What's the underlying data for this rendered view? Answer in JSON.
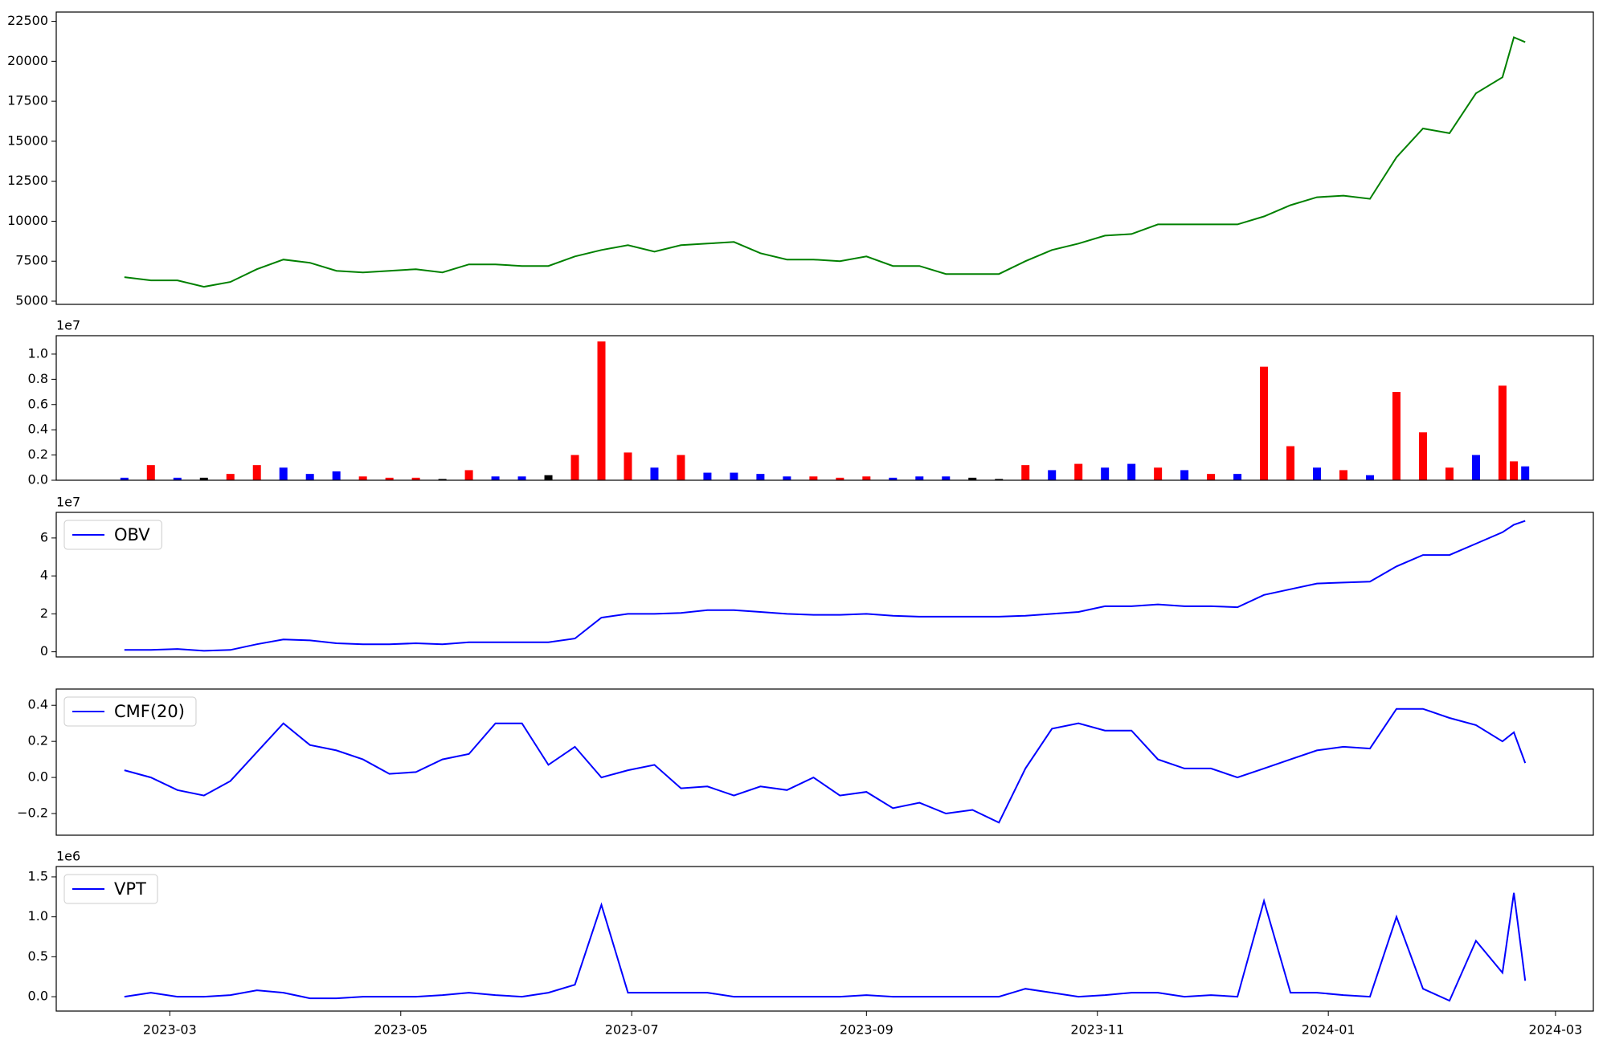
{
  "chart_data": [
    {
      "type": "line",
      "xlim": [
        -30,
        376
      ],
      "x": [
        -12,
        -5,
        2,
        9,
        16,
        23,
        30,
        37,
        44,
        51,
        58,
        65,
        72,
        79,
        86,
        93,
        100,
        107,
        114,
        121,
        128,
        135,
        142,
        149,
        156,
        163,
        170,
        177,
        184,
        191,
        198,
        205,
        212,
        219,
        226,
        233,
        240,
        247,
        254,
        261,
        268,
        275,
        282,
        289,
        296,
        303,
        310,
        317,
        324,
        331,
        338,
        345,
        352,
        355,
        358
      ],
      "ylim": [
        4800,
        23080
      ],
      "yticks": [
        5000,
        7500,
        10000,
        12500,
        15000,
        17500,
        20000,
        22500
      ],
      "series": [
        {
          "color": "#008000",
          "values": [
            6500,
            6300,
            6300,
            5900,
            6200,
            7000,
            7600,
            7400,
            6900,
            6800,
            6900,
            7000,
            6800,
            7300,
            7300,
            7200,
            7200,
            7800,
            8200,
            8500,
            8100,
            8500,
            8600,
            8700,
            8000,
            7600,
            7600,
            7500,
            7800,
            7200,
            7200,
            6700,
            6700,
            6700,
            7500,
            8200,
            8600,
            9100,
            9200,
            9800,
            9800,
            9800,
            9800,
            10300,
            11000,
            11500,
            11600,
            11400,
            14000,
            15800,
            15500,
            18000,
            19000,
            21500,
            21200
          ]
        }
      ]
    },
    {
      "type": "bar",
      "xlim": [
        -30,
        376
      ],
      "offset_label": "1e7",
      "x": [
        -12,
        -5,
        2,
        9,
        16,
        23,
        30,
        37,
        44,
        51,
        58,
        65,
        72,
        79,
        86,
        93,
        100,
        107,
        114,
        121,
        128,
        135,
        142,
        149,
        156,
        163,
        170,
        177,
        184,
        191,
        198,
        205,
        212,
        219,
        226,
        233,
        240,
        247,
        254,
        261,
        268,
        275,
        282,
        289,
        296,
        303,
        310,
        317,
        324,
        331,
        338,
        345,
        352,
        355,
        358
      ],
      "ylim": [
        0,
        11460000
      ],
      "yticks": [
        {
          "value": 0,
          "label": "0.0"
        },
        {
          "value": 2000000,
          "label": "0.2"
        },
        {
          "value": 4000000,
          "label": "0.4"
        },
        {
          "value": 6000000,
          "label": "0.6"
        },
        {
          "value": 8000000,
          "label": "0.8"
        },
        {
          "value": 10000000,
          "label": "1.0"
        }
      ],
      "series": [
        {
          "values": [
            200000,
            1200000,
            200000,
            200000,
            500000,
            1200000,
            1000000,
            500000,
            700000,
            300000,
            200000,
            200000,
            100000,
            800000,
            300000,
            300000,
            400000,
            2000000,
            11000000,
            2200000,
            1000000,
            2000000,
            600000,
            600000,
            500000,
            300000,
            300000,
            200000,
            300000,
            200000,
            300000,
            300000,
            200000,
            100000,
            1200000,
            800000,
            1300000,
            1000000,
            1300000,
            1000000,
            800000,
            500000,
            500000,
            9000000,
            2700000,
            1000000,
            800000,
            400000,
            7000000,
            3800000,
            1000000,
            2000000,
            7500000,
            1500000,
            1100000
          ],
          "colors": [
            "#0000ff",
            "#ff0000",
            "#0000ff",
            "#000000",
            "#ff0000",
            "#ff0000",
            "#0000ff",
            "#0000ff",
            "#0000ff",
            "#ff0000",
            "#ff0000",
            "#ff0000",
            "#000000",
            "#ff0000",
            "#0000ff",
            "#0000ff",
            "#000000",
            "#ff0000",
            "#ff0000",
            "#ff0000",
            "#0000ff",
            "#ff0000",
            "#0000ff",
            "#0000ff",
            "#0000ff",
            "#0000ff",
            "#ff0000",
            "#ff0000",
            "#ff0000",
            "#0000ff",
            "#0000ff",
            "#0000ff",
            "#000000",
            "#000000",
            "#ff0000",
            "#0000ff",
            "#ff0000",
            "#0000ff",
            "#0000ff",
            "#ff0000",
            "#0000ff",
            "#ff0000",
            "#0000ff",
            "#ff0000",
            "#ff0000",
            "#0000ff",
            "#ff0000",
            "#0000ff",
            "#ff0000",
            "#ff0000",
            "#ff0000",
            "#0000ff",
            "#ff0000",
            "#ff0000",
            "#0000ff"
          ]
        }
      ]
    },
    {
      "type": "line",
      "xlim": [
        -30,
        376
      ],
      "offset_label": "1e7",
      "legend": "upper left",
      "x": [
        -12,
        -5,
        2,
        9,
        16,
        23,
        30,
        37,
        44,
        51,
        58,
        65,
        72,
        79,
        86,
        93,
        100,
        107,
        114,
        121,
        128,
        135,
        142,
        149,
        156,
        163,
        170,
        177,
        184,
        191,
        198,
        205,
        212,
        219,
        226,
        233,
        240,
        247,
        254,
        261,
        268,
        275,
        282,
        289,
        296,
        303,
        310,
        317,
        324,
        331,
        338,
        345,
        352,
        355,
        358
      ],
      "ylim": [
        -2700000,
        73500000
      ],
      "yticks": [
        {
          "value": 0,
          "label": "0"
        },
        {
          "value": 20000000,
          "label": "2"
        },
        {
          "value": 40000000,
          "label": "4"
        },
        {
          "value": 60000000,
          "label": "6"
        }
      ],
      "series": [
        {
          "name": "OBV",
          "color": "#0000ff",
          "values": [
            1000000,
            1000000,
            1500000,
            500000,
            1000000,
            4000000,
            6500000,
            6000000,
            4500000,
            4000000,
            4000000,
            4500000,
            4000000,
            5000000,
            5000000,
            5000000,
            5000000,
            7000000,
            18000000,
            20000000,
            20000000,
            20500000,
            22000000,
            22000000,
            21000000,
            20000000,
            19500000,
            19500000,
            20000000,
            19000000,
            18500000,
            18500000,
            18500000,
            18500000,
            19000000,
            20000000,
            21000000,
            24000000,
            24000000,
            25000000,
            24000000,
            24000000,
            23500000,
            30000000,
            33000000,
            36000000,
            36500000,
            37000000,
            45000000,
            51000000,
            51000000,
            57000000,
            63000000,
            67000000,
            69000000
          ]
        }
      ]
    },
    {
      "type": "line",
      "xlim": [
        -30,
        376
      ],
      "legend": "upper left",
      "x": [
        -12,
        -5,
        2,
        9,
        16,
        23,
        30,
        37,
        44,
        51,
        58,
        65,
        72,
        79,
        86,
        93,
        100,
        107,
        114,
        121,
        128,
        135,
        142,
        149,
        156,
        163,
        170,
        177,
        184,
        191,
        198,
        205,
        212,
        219,
        226,
        233,
        240,
        247,
        254,
        261,
        268,
        275,
        282,
        289,
        296,
        303,
        310,
        317,
        324,
        331,
        338,
        345,
        352,
        355,
        358
      ],
      "ylim": [
        -0.32,
        0.49
      ],
      "yticks": [
        {
          "value": -0.2,
          "label": "−0.2"
        },
        {
          "value": 0,
          "label": "0.0"
        },
        {
          "value": 0.2,
          "label": "0.2"
        },
        {
          "value": 0.4,
          "label": "0.4"
        }
      ],
      "series": [
        {
          "name": "CMF(20)",
          "color": "#0000ff",
          "values": [
            0.04,
            0.0,
            -0.07,
            -0.1,
            -0.02,
            0.14,
            0.3,
            0.18,
            0.15,
            0.1,
            0.02,
            0.03,
            0.1,
            0.13,
            0.3,
            0.3,
            0.07,
            0.17,
            0.0,
            0.04,
            0.07,
            -0.06,
            -0.05,
            -0.1,
            -0.05,
            -0.07,
            0.0,
            -0.1,
            -0.08,
            -0.17,
            -0.14,
            -0.2,
            -0.18,
            -0.25,
            0.05,
            0.27,
            0.3,
            0.26,
            0.26,
            0.1,
            0.05,
            0.05,
            0.0,
            0.05,
            0.1,
            0.15,
            0.17,
            0.16,
            0.38,
            0.38,
            0.33,
            0.29,
            0.2,
            0.25,
            0.08
          ]
        }
      ]
    },
    {
      "type": "line",
      "xlim": [
        -30,
        376
      ],
      "offset_label": "1e6",
      "legend": "upper left",
      "x": [
        -12,
        -5,
        2,
        9,
        16,
        23,
        30,
        37,
        44,
        51,
        58,
        65,
        72,
        79,
        86,
        93,
        100,
        107,
        114,
        121,
        128,
        135,
        142,
        149,
        156,
        163,
        170,
        177,
        184,
        191,
        198,
        205,
        212,
        219,
        226,
        233,
        240,
        247,
        254,
        261,
        268,
        275,
        282,
        289,
        296,
        303,
        310,
        317,
        324,
        331,
        338,
        345,
        352,
        355,
        358
      ],
      "ylim": [
        -180000,
        1630000
      ],
      "yticks": [
        {
          "value": 0,
          "label": "0.0"
        },
        {
          "value": 500000,
          "label": "0.5"
        },
        {
          "value": 1000000,
          "label": "1.0"
        },
        {
          "value": 1500000,
          "label": "1.5"
        }
      ],
      "xticks": [
        {
          "value": 0,
          "label": "2023-03"
        },
        {
          "value": 61,
          "label": "2023-05"
        },
        {
          "value": 122,
          "label": "2023-07"
        },
        {
          "value": 184,
          "label": "2023-09"
        },
        {
          "value": 245,
          "label": "2023-11"
        },
        {
          "value": 306,
          "label": "2024-01"
        },
        {
          "value": 366,
          "label": "2024-03"
        }
      ],
      "series": [
        {
          "name": "VPT",
          "color": "#0000ff",
          "values": [
            0,
            50000,
            0,
            0,
            20000,
            80000,
            50000,
            -20000,
            -20000,
            0,
            0,
            0,
            20000,
            50000,
            20000,
            0,
            50000,
            150000,
            1150000,
            50000,
            50000,
            50000,
            50000,
            0,
            0,
            0,
            0,
            0,
            20000,
            0,
            0,
            0,
            0,
            0,
            100000,
            50000,
            0,
            20000,
            50000,
            50000,
            0,
            20000,
            0,
            1200000,
            50000,
            50000,
            20000,
            0,
            1000000,
            100000,
            -50000,
            700000,
            300000,
            1300000,
            200000
          ]
        }
      ]
    }
  ]
}
